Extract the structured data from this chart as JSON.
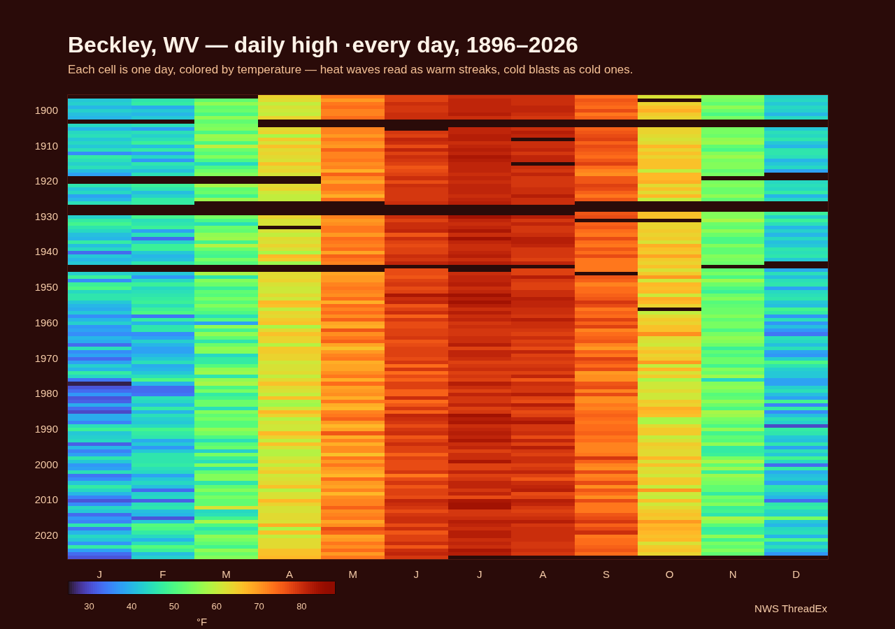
{
  "chart_data": [
    {
      "type": "heatmap",
      "title": "Beckley, WV — daily high ·every day, 1896–2026",
      "subtitle": "Each cell is one day, colored by temperature — heat waves read as warm streaks, cold blasts as cold ones.",
      "categories": [
        null,
        null,
        null,
        null,
        null,
        null,
        null,
        null,
        null,
        null,
        null,
        null
      ],
      "y_categories": [
        null,
        null,
        null,
        null,
        "1900",
        null,
        null,
        null,
        null,
        null,
        null,
        null,
        null,
        null,
        "1910",
        null,
        null,
        null,
        null,
        null,
        null,
        null,
        null,
        null,
        "1920",
        null,
        null,
        null,
        null,
        null,
        null
      ],
      "cells": [
        [
          null,
          null,
          null,
          64,
          73,
          78,
          80,
          80,
          74,
          62,
          55,
          43
        ],
        [
          42,
          46,
          52,
          63,
          70,
          78,
          81,
          80,
          76,
          null,
          54,
          44
        ],
        [
          43,
          47,
          56,
          60,
          73,
          80,
          81,
          80,
          75,
          64,
          52,
          42
        ],
        [
          40,
          39,
          52,
          62,
          74,
          79,
          81,
          81,
          74,
          66,
          56,
          44
        ],
        [
          43,
          42,
          53,
          61,
          72,
          79,
          81,
          81,
          77,
          68,
          53,
          43
        ],
        [
          41,
          40,
          50,
          60,
          72,
          80,
          82,
          80,
          73,
          65,
          50,
          40
        ],
        [
          40,
          42,
          56,
          64,
          74,
          80,
          80,
          79,
          75,
          64,
          54,
          44
        ],
        [
          null,
          null,
          52,
          null,
          null,
          null,
          null,
          null,
          null,
          null,
          null,
          null
        ],
        [
          44,
          45,
          54,
          null,
          null,
          null,
          null,
          null,
          null,
          null,
          null,
          null
        ],
        [
          40,
          38,
          55,
          63,
          72,
          null,
          81,
          80,
          75,
          64,
          54,
          42
        ],
        [
          44,
          45,
          50,
          64,
          72,
          79,
          81,
          82,
          76,
          64,
          54,
          45
        ],
        [
          45,
          43,
          57,
          58,
          70,
          78,
          82,
          81,
          77,
          63,
          53,
          44
        ],
        [
          42,
          45,
          56,
          65,
          73,
          81,
          82,
          null,
          78,
          62,
          56,
          46
        ],
        [
          44,
          48,
          50,
          62,
          71,
          80,
          80,
          80,
          75,
          63,
          57,
          42
        ],
        [
          42,
          41,
          60,
          66,
          70,
          77,
          81,
          80,
          77,
          67,
          52,
          40
        ],
        [
          45,
          47,
          53,
          63,
          75,
          81,
          82,
          81,
          76,
          64,
          50,
          46
        ],
        [
          36,
          38,
          51,
          64,
          72,
          78,
          81,
          79,
          75,
          66,
          55,
          46
        ],
        [
          47,
          44,
          55,
          63,
          72,
          80,
          83,
          81,
          74,
          64,
          57,
          45
        ],
        [
          45,
          37,
          50,
          62,
          73,
          79,
          82,
          81,
          76,
          66,
          54,
          40
        ],
        [
          43,
          46,
          44,
          66,
          71,
          78,
          81,
          null,
          78,
          66,
          55,
          42
        ],
        [
          45,
          44,
          50,
          63,
          72,
          76,
          81,
          80,
          74,
          66,
          55,
          44
        ],
        [
          41,
          41,
          53,
          64,
          68,
          77,
          81,
          79,
          72,
          60,
          52,
          38
        ],
        [
          38,
          45,
          55,
          62,
          75,
          78,
          80,
          81,
          71,
          67,
          54,
          null
        ],
        [
          null,
          null,
          null,
          null,
          71,
          80,
          81,
          79,
          76,
          67,
          null,
          null
        ],
        [
          null,
          null,
          null,
          null,
          69,
          77,
          80,
          79,
          76,
          68,
          54,
          44
        ],
        [
          46,
          48,
          58,
          63,
          73,
          80,
          81,
          79,
          78,
          63,
          55,
          45
        ],
        [
          42,
          46,
          52,
          64,
          73,
          79,
          81,
          80,
          77,
          66,
          53,
          44
        ],
        [
          44,
          41,
          53,
          61,
          71,
          79,
          81,
          80,
          75,
          63,
          53,
          47
        ],
        [
          38,
          43,
          49,
          60,
          68,
          79,
          80,
          82,
          73,
          67,
          56,
          40
        ],
        [
          40,
          47,
          57,
          60,
          74,
          79,
          81,
          80,
          76,
          60,
          52,
          44
        ],
        [
          45,
          47,
          null,
          null,
          null,
          80,
          82,
          80,
          null,
          null,
          null,
          null
        ]
      ],
      "clim": [
        25,
        88
      ],
      "cticks": [
        30,
        50,
        70
      ]
    },
    {
      "type": "heatmap",
      "categories": [
        "J",
        "F",
        "M",
        "A",
        "M",
        "J",
        "J",
        "A",
        "S",
        "O",
        "N",
        "D"
      ],
      "y_categories": [
        null,
        "1930",
        null,
        null,
        null,
        null,
        null,
        null,
        null,
        null,
        null,
        "1940",
        null,
        null,
        null,
        null,
        null,
        null,
        null,
        null,
        null,
        "1950",
        null,
        null,
        null,
        null,
        null,
        null,
        null,
        null,
        null,
        "1960",
        null,
        null,
        null,
        null,
        null,
        null,
        null,
        null,
        null,
        "1970",
        null,
        null,
        null,
        null,
        null,
        null,
        null,
        null,
        null,
        "1980",
        null,
        null,
        null,
        null,
        null,
        null,
        null,
        null,
        null,
        "1990",
        null,
        null,
        null,
        null,
        null,
        null,
        null,
        null,
        null,
        "2000",
        null,
        null,
        null,
        null,
        null,
        null,
        null,
        null,
        null,
        "2010",
        null,
        null,
        null,
        null,
        null,
        null,
        null,
        null,
        null,
        "2020",
        null,
        null,
        null,
        null,
        null,
        null
      ],
      "cells": [
        [
          null,
          null,
          null,
          null,
          null,
          null,
          null,
          null,
          76,
          66,
          55,
          48
        ],
        [
          43,
          49,
          54,
          64,
          72,
          80,
          84,
          82,
          77,
          66,
          55,
          43
        ],
        [
          47,
          45,
          50,
          62,
          70,
          78,
          81,
          79,
          null,
          null,
          58,
          48
        ],
        [
          49,
          46,
          45,
          62,
          71,
          80,
          80,
          81,
          75,
          64,
          53,
          45
        ],
        [
          46,
          48,
          53,
          null,
          73,
          80,
          81,
          79,
          76,
          64,
          52,
          40
        ],
        [
          44,
          38,
          52,
          62,
          73,
          81,
          83,
          79,
          74,
          65,
          56,
          43
        ],
        [
          41,
          45,
          56,
          60,
          70,
          76,
          80,
          80,
          73,
          64,
          53,
          40
        ],
        [
          40,
          33,
          57,
          63,
          74,
          80,
          84,
          82,
          77,
          65,
          50,
          44
        ],
        [
          47,
          43,
          49,
          62,
          73,
          78,
          81,
          82,
          74,
          62,
          50,
          41
        ],
        [
          41,
          48,
          59,
          64,
          72,
          77,
          80,
          81,
          73,
          68,
          55,
          42
        ],
        [
          44,
          48,
          53,
          62,
          74,
          78,
          80,
          79,
          76,
          66,
          52,
          46
        ],
        [
          33,
          42,
          50,
          58,
          69,
          78,
          81,
          79,
          74,
          65,
          52,
          45
        ],
        [
          42,
          40,
          49,
          67,
          75,
          80,
          82,
          79,
          77,
          69,
          55,
          46
        ],
        [
          40,
          41,
          54,
          65,
          73,
          79,
          80,
          78,
          73,
          65,
          54,
          42
        ],
        [
          42,
          46,
          51,
          57,
          72,
          81,
          82,
          81,
          73,
          64,
          53,
          null
        ],
        [
          null,
          null,
          null,
          null,
          null,
          null,
          null,
          null,
          73,
          66,
          null,
          null
        ],
        [
          null,
          null,
          null,
          null,
          null,
          77,
          null,
          78,
          73,
          62,
          52,
          39
        ],
        [
          43,
          42,
          58,
          63,
          69,
          77,
          80,
          78,
          null,
          65,
          54,
          45
        ],
        [
          48,
          37,
          46,
          63,
          70,
          76,
          81,
          82,
          76,
          70,
          50,
          41
        ],
        [
          36,
          44,
          55,
          64,
          70,
          78,
          81,
          79,
          75,
          61,
          57,
          45
        ],
        [
          48,
          48,
          53,
          62,
          72,
          79,
          82,
          78,
          72,
          67,
          53,
          46
        ],
        [
          50,
          44,
          48,
          61,
          73,
          77,
          80,
          78,
          74,
          66,
          50,
          38
        ],
        [
          44,
          45,
          52,
          61,
          72,
          78,
          81,
          80,
          74,
          67,
          48,
          44
        ],
        [
          46,
          46,
          51,
          63,
          71,
          83,
          84,
          80,
          75,
          61,
          53,
          45
        ],
        [
          46,
          47,
          54,
          61,
          74,
          80,
          82,
          82,
          76,
          68,
          55,
          46
        ],
        [
          42,
          48,
          51,
          67,
          68,
          81,
          84,
          81,
          79,
          67,
          51,
          42
        ],
        [
          40,
          45,
          55,
          66,
          74,
          76,
          82,
          81,
          77,
          64,
          52,
          41
        ],
        [
          39,
          48,
          52,
          60,
          72,
          78,
          80,
          80,
          73,
          null,
          53,
          49
        ],
        [
          42,
          50,
          50,
          64,
          74,
          80,
          82,
          80,
          75,
          60,
          53,
          47
        ],
        [
          36,
          34,
          45,
          63,
          71,
          75,
          80,
          79,
          74,
          63,
          55,
          37
        ],
        [
          40,
          47,
          51,
          65,
          75,
          79,
          81,
          82,
          78,
          65,
          52,
          45
        ],
        [
          43,
          40,
          38,
          66,
          69,
          77,
          79,
          80,
          75,
          64,
          54,
          37
        ],
        [
          37,
          46,
          56,
          58,
          68,
          77,
          80,
          80,
          78,
          66,
          54,
          41
        ],
        [
          38,
          46,
          49,
          63,
          76,
          78,
          79,
          79,
          72,
          66,
          50,
          37
        ],
        [
          36,
          36,
          56,
          66,
          71,
          78,
          79,
          78,
          74,
          71,
          54,
          34
        ],
        [
          40,
          38,
          52,
          64,
          73,
          79,
          80,
          80,
          75,
          63,
          56,
          45
        ],
        [
          39,
          43,
          46,
          64,
          75,
          76,
          80,
          78,
          76,
          62,
          55,
          44
        ],
        [
          33,
          40,
          53,
          59,
          69,
          77,
          82,
          79,
          72,
          61,
          53,
          41
        ],
        [
          45,
          38,
          56,
          65,
          66,
          78,
          78,
          77,
          70,
          64,
          48,
          45
        ],
        [
          36,
          38,
          55,
          65,
          70,
          78,
          81,
          81,
          75,
          66,
          52,
          38
        ],
        [
          38,
          40,
          44,
          64,
          72,
          78,
          81,
          78,
          73,
          64,
          50,
          37
        ],
        [
          33,
          42,
          47,
          64,
          73,
          77,
          80,
          79,
          78,
          65,
          53,
          43
        ],
        [
          38,
          45,
          47,
          61,
          68,
          79,
          78,
          78,
          76,
          70,
          53,
          50
        ],
        [
          43,
          39,
          51,
          62,
          69,
          74,
          79,
          79,
          74,
          60,
          49,
          46
        ],
        [
          40,
          40,
          56,
          62,
          69,
          79,
          80,
          80,
          77,
          67,
          55,
          43
        ],
        [
          47,
          42,
          57,
          63,
          71,
          74,
          78,
          78,
          70,
          62,
          53,
          42
        ],
        [
          44,
          45,
          46,
          60,
          73,
          77,
          79,
          81,
          71,
          65,
          57,
          42
        ],
        [
          34,
          50,
          56,
          63,
          68,
          75,
          78,
          76,
          71,
          58,
          44,
          38
        ],
        [
          26,
          40,
          58,
          66,
          74,
          78,
          82,
          80,
          76,
          61,
          55,
          38
        ],
        [
          31,
          33,
          50,
          63,
          69,
          78,
          80,
          79,
          77,
          61,
          56,
          43
        ],
        [
          33,
          33,
          54,
          62,
          70,
          75,
          78,
          79,
          72,
          63,
          54,
          45
        ],
        [
          37,
          34,
          47,
          60,
          71,
          75,
          81,
          82,
          77,
          61,
          51,
          41
        ],
        [
          31,
          45,
          49,
          66,
          68,
          80,
          79,
          78,
          71,
          61,
          52,
          38
        ],
        [
          32,
          44,
          53,
          58,
          73,
          74,
          79,
          77,
          71,
          65,
          56,
          49
        ],
        [
          39,
          41,
          53,
          57,
          68,
          76,
          81,
          82,
          73,
          64,
          53,
          35
        ],
        [
          33,
          47,
          45,
          61,
          67,
          79,
          78,
          79,
          72,
          68,
          50,
          47
        ],
        [
          30,
          40,
          55,
          67,
          72,
          75,
          79,
          77,
          74,
          67,
          58,
          36
        ],
        [
          39,
          45,
          52,
          64,
          73,
          81,
          84,
          78,
          75,
          66,
          57,
          41
        ],
        [
          39,
          43,
          54,
          59,
          75,
          80,
          82,
          81,
          74,
          58,
          54,
          45
        ],
        [
          35,
          42,
          51,
          62,
          70,
          79,
          83,
          83,
          73,
          58,
          53,
          43
        ],
        [
          45,
          44,
          51,
          61,
          67,
          77,
          80,
          79,
          74,
          63,
          50,
          30
        ],
        [
          48,
          49,
          56,
          61,
          69,
          79,
          81,
          79,
          74,
          65,
          56,
          47
        ],
        [
          42,
          47,
          54,
          67,
          76,
          80,
          82,
          80,
          75,
          65,
          49,
          46
        ],
        [
          43,
          46,
          50,
          64,
          68,
          76,
          81,
          77,
          73,
          60,
          52,
          42
        ],
        [
          44,
          39,
          45,
          60,
          72,
          78,
          83,
          81,
          74,
          62,
          51,
          41
        ],
        [
          32,
          42,
          51,
          66,
          68,
          80,
          80,
          78,
          72,
          65,
          56,
          46
        ],
        [
          40,
          37,
          53,
          62,
          71,
          78,
          81,
          82,
          72,
          64,
          47,
          38
        ],
        [
          35,
          42,
          43,
          59,
          71,
          78,
          78,
          79,
          72,
          63,
          47,
          45
        ],
        [
          38,
          46,
          54,
          59,
          66,
          75,
          80,
          78,
          73,
          63,
          48,
          42
        ],
        [
          46,
          46,
          48,
          61,
          73,
          78,
          80,
          80,
          79,
          67,
          54,
          49
        ],
        [
          42,
          46,
          45,
          63,
          70,
          77,
          83,
          80,
          75,
          62,
          58,
          44
        ],
        [
          37,
          47,
          55,
          60,
          73,
          77,
          78,
          78,
          72,
          66,
          52,
          33
        ],
        [
          38,
          45,
          45,
          63,
          70,
          77,
          78,
          79,
          71,
          62,
          57,
          47
        ],
        [
          45,
          44,
          52,
          65,
          69,
          79,
          81,
          81,
          77,
          63,
          48,
          39
        ],
        [
          34,
          38,
          55,
          61,
          67,
          73,
          78,
          78,
          72,
          61,
          57,
          41
        ],
        [
          36,
          42,
          55,
          62,
          74,
          77,
          79,
          76,
          73,
          65,
          55,
          42
        ],
        [
          42,
          44,
          46,
          63,
          70,
          79,
          81,
          80,
          77,
          65,
          54,
          38
        ],
        [
          47,
          41,
          52,
          66,
          69,
          76,
          81,
          81,
          71,
          60,
          52,
          46
        ],
        [
          44,
          33,
          55,
          59,
          72,
          78,
          79,
          82,
          76,
          70,
          52,
          45
        ],
        [
          40,
          43,
          51,
          62,
          67,
          78,
          81,
          77,
          74,
          61,
          47,
          42
        ],
        [
          35,
          44,
          54,
          62,
          71,
          77,
          77,
          78,
          71,
          60,
          54,
          40
        ],
        [
          31,
          32,
          52,
          67,
          72,
          81,
          83,
          82,
          77,
          66,
          52,
          33
        ],
        [
          36,
          45,
          52,
          64,
          72,
          80,
          84,
          81,
          73,
          61,
          55,
          46
        ],
        [
          44,
          46,
          62,
          62,
          75,
          79,
          84,
          79,
          73,
          63,
          48,
          47
        ],
        [
          42,
          41,
          44,
          62,
          71,
          77,
          79,
          78,
          73,
          65,
          49,
          44
        ],
        [
          33,
          40,
          45,
          63,
          72,
          79,
          79,
          79,
          76,
          66,
          46,
          43
        ],
        [
          37,
          31,
          49,
          63,
          73,
          80,
          80,
          80,
          77,
          65,
          58,
          54
        ],
        [
          35,
          42,
          58,
          62,
          69,
          80,
          82,
          82,
          79,
          70,
          56,
          42
        ],
        [
          46,
          51,
          50,
          68,
          71,
          77,
          81,
          79,
          75,
          67,
          51,
          40
        ],
        [
          34,
          50,
          46,
          58,
          77,
          80,
          80,
          80,
          77,
          68,
          47,
          44
        ],
        [
          40,
          47,
          49,
          66,
          75,
          76,
          82,
          80,
          80,
          67,
          48,
          45
        ],
        [
          44,
          44,
          56,
          60,
          69,
          78,
          82,
          80,
          73,
          66,
          56,
          40
        ],
        [
          42,
          40,
          54,
          63,
          70,
          78,
          80,
          80,
          74,
          67,
          49,
          50
        ],
        [
          37,
          45,
          52,
          63,
          73,
          80,
          81,
          79,
          74,
          62,
          54,
          42
        ],
        [
          47,
          51,
          49,
          63,
          71,
          76,
          80,
          79,
          75,
          65,
          52,
          45
        ],
        [
          38,
          48,
          56,
          66,
          74,
          80,
          83,
          80,
          76,
          66,
          55,
          41
        ],
        [
          33,
          41,
          53,
          66,
          70,
          81,
          82,
          79,
          74,
          64,
          52,
          37
        ],
        [
          31,
          43,
          55,
          67,
          73,
          79,
          null,
          null,
          null,
          null,
          null,
          null
        ]
      ],
      "clim": [
        25,
        88
      ],
      "cticks": [
        40,
        60,
        80
      ],
      "clabel": "°F",
      "annotations": [
        "NWS ThreadEx"
      ]
    }
  ]
}
